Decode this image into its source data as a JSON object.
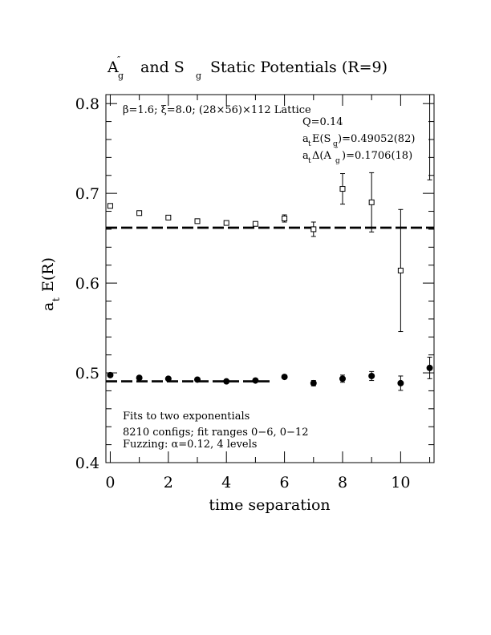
{
  "chart_data": {
    "type": "scatter",
    "title_main": "A",
    "title_main_sub": "g",
    "title_main_sup": "″",
    "title_rest1": "and S",
    "title_rest1_sub": "g",
    "title_rest2": "Static Potentials (R=9)",
    "xlabel": "time separation",
    "ylabel_main": "a",
    "ylabel_sub": "t",
    "ylabel_rest": "E(R)",
    "xlim": [
      -0.15,
      11.15
    ],
    "ylim": [
      0.4,
      0.81
    ],
    "x_ticks": [
      0,
      2,
      4,
      6,
      8,
      10
    ],
    "x_tick_labels": [
      "0",
      "2",
      "4",
      "6",
      "8",
      "10"
    ],
    "y_ticks": [
      0.4,
      0.5,
      0.6,
      0.7,
      0.8
    ],
    "y_tick_labels": [
      "0.4",
      "0.5",
      "0.6",
      "0.7",
      "0.8"
    ],
    "annotations": {
      "lattice": "β=1.6; ξ=8.0; (28×56)×112 Lattice",
      "q": "Q=0.14",
      "energy_pre": "a",
      "energy_pre_sub": "t",
      "energy_mid": "E(S",
      "energy_mid_sub": "g",
      "energy_post": ")=0.49052(82)",
      "delta_pre": "a",
      "delta_pre_sub": "t",
      "delta_mid": "Δ(A",
      "delta_mid_sub": "g",
      "delta_mid_sup": "″",
      "delta_post": ")=0.1706(18)",
      "fits": "Fits to two exponentials",
      "configs": "8210 configs; fit ranges 0−6, 0−12",
      "fuzzing": "Fuzzing: α=0.12, 4 levels"
    },
    "series": [
      {
        "marker": "open-square",
        "x": [
          0,
          1,
          2,
          3,
          4,
          5,
          6,
          7,
          8,
          9,
          10,
          11
        ],
        "y": [
          0.686,
          0.678,
          0.673,
          0.669,
          0.667,
          0.666,
          0.672,
          0.66,
          0.705,
          0.69,
          0.614,
          0.835
        ],
        "err": [
          0.002,
          0.002,
          0.002,
          0.002,
          0.002,
          0.002,
          0.004,
          0.008,
          0.017,
          0.033,
          0.068,
          0.12
        ]
      },
      {
        "marker": "filled-circle",
        "x": [
          0,
          1,
          2,
          3,
          4,
          5,
          6,
          7,
          8,
          9,
          10,
          11
        ],
        "y": [
          0.4975,
          0.4945,
          0.4935,
          0.4925,
          0.4905,
          0.4915,
          0.4955,
          0.4885,
          0.4935,
          0.4965,
          0.4885,
          0.5055
        ],
        "err": [
          0.0012,
          0.0012,
          0.0012,
          0.0012,
          0.0012,
          0.0012,
          0.002,
          0.003,
          0.004,
          0.005,
          0.008,
          0.012
        ]
      }
    ],
    "fit_lines": [
      {
        "style": "dashed-double",
        "x_range": [
          -0.15,
          11.15
        ],
        "y_values": [
          0.6611,
          0.6623
        ]
      },
      {
        "style": "dashed-double",
        "x_range": [
          -0.15,
          5.5
        ],
        "y_values": [
          0.4899,
          0.4911
        ]
      }
    ]
  }
}
